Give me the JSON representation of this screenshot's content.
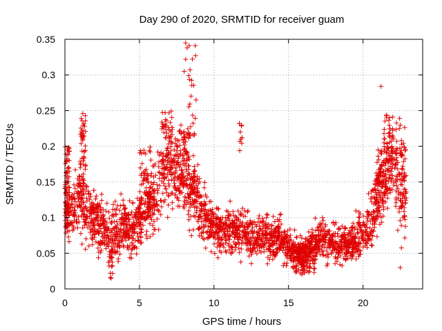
{
  "chart_data": {
    "type": "scatter",
    "title": "Day 290 of 2020, SRMTID for receiver guam",
    "xlabel": "GPS time / hours",
    "ylabel": "SRMTID / TECUs",
    "xlim": [
      0,
      24
    ],
    "ylim": [
      0,
      0.35
    ],
    "xticks": [
      0,
      5,
      10,
      15,
      20
    ],
    "yticks": [
      0,
      0.05,
      0.1,
      0.15,
      0.2,
      0.25,
      0.3,
      0.35
    ],
    "xtick_labels": [
      "0",
      "5",
      "10",
      "15",
      "20"
    ],
    "ytick_labels": [
      "0",
      "0.05",
      "0.1",
      "0.15",
      "0.2",
      "0.25",
      "0.3",
      "0.35"
    ],
    "grid": true,
    "marker": "+",
    "point_count_estimate": 2600,
    "trend": {
      "x": [
        0,
        0.5,
        1.0,
        1.5,
        2.0,
        2.5,
        3.0,
        3.5,
        4.0,
        4.5,
        5.0,
        5.5,
        6.0,
        6.5,
        7.0,
        7.5,
        8.0,
        8.5,
        9.0,
        9.5,
        10.0,
        10.5,
        11.0,
        11.5,
        12.0,
        12.5,
        13.0,
        13.5,
        14.0,
        14.5,
        15.0,
        15.5,
        16.0,
        16.5,
        17.0,
        17.5,
        18.0,
        18.5,
        19.0,
        19.5,
        20.0,
        20.5,
        21.0,
        21.5,
        22.0,
        22.5,
        22.9
      ],
      "y": [
        0.12,
        0.11,
        0.13,
        0.11,
        0.095,
        0.09,
        0.08,
        0.075,
        0.085,
        0.08,
        0.1,
        0.12,
        0.13,
        0.15,
        0.16,
        0.17,
        0.155,
        0.14,
        0.12,
        0.1,
        0.085,
        0.08,
        0.085,
        0.08,
        0.08,
        0.07,
        0.075,
        0.075,
        0.07,
        0.07,
        0.055,
        0.05,
        0.05,
        0.06,
        0.065,
        0.07,
        0.065,
        0.06,
        0.065,
        0.07,
        0.08,
        0.09,
        0.13,
        0.15,
        0.17,
        0.13,
        0.12
      ]
    },
    "spread": {
      "x": [
        0,
        1.0,
        2.0,
        3.0,
        4.0,
        5.0,
        6.0,
        7.0,
        8.0,
        9.0,
        10.0,
        11.0,
        12.0,
        13.0,
        14.0,
        15.0,
        16.0,
        17.0,
        18.0,
        19.0,
        20.0,
        21.0,
        22.0,
        22.9
      ],
      "y": [
        0.035,
        0.04,
        0.035,
        0.035,
        0.035,
        0.04,
        0.045,
        0.045,
        0.05,
        0.04,
        0.03,
        0.03,
        0.03,
        0.03,
        0.028,
        0.022,
        0.022,
        0.025,
        0.025,
        0.025,
        0.03,
        0.04,
        0.045,
        0.045
      ]
    },
    "clusters": [
      {
        "x": [
          0.0,
          0.3
        ],
        "y": [
          0.08,
          0.2
        ],
        "n": 60
      },
      {
        "x": [
          1.0,
          1.4
        ],
        "y": [
          0.15,
          0.245
        ],
        "n": 45
      },
      {
        "x": [
          2.9,
          3.2
        ],
        "y": [
          0.015,
          0.06
        ],
        "n": 20
      },
      {
        "x": [
          5.0,
          5.9
        ],
        "y": [
          0.1,
          0.2
        ],
        "n": 50
      },
      {
        "x": [
          6.5,
          7.2
        ],
        "y": [
          0.16,
          0.25
        ],
        "n": 60
      },
      {
        "x": [
          7.7,
          8.4
        ],
        "y": [
          0.15,
          0.23
        ],
        "n": 50
      },
      {
        "x": [
          8.3,
          8.8
        ],
        "y": [
          0.21,
          0.345
        ],
        "n": 22
      },
      {
        "x": [
          11.7,
          11.9
        ],
        "y": [
          0.19,
          0.232
        ],
        "n": 8
      },
      {
        "x": [
          15.3,
          16.8
        ],
        "y": [
          0.02,
          0.06
        ],
        "n": 90
      },
      {
        "x": [
          20.8,
          21.5
        ],
        "y": [
          0.13,
          0.2
        ],
        "n": 40
      },
      {
        "x": [
          21.4,
          22.3
        ],
        "y": [
          0.18,
          0.245
        ],
        "n": 50
      },
      {
        "x": [
          22.4,
          22.9
        ],
        "y": [
          0.15,
          0.24
        ],
        "n": 28
      }
    ],
    "notable_points": [
      {
        "x": 8.1,
        "y": 0.345
      },
      {
        "x": 8.2,
        "y": 0.338
      },
      {
        "x": 8.1,
        "y": 0.322
      },
      {
        "x": 8.0,
        "y": 0.305
      },
      {
        "x": 21.2,
        "y": 0.284
      },
      {
        "x": 8.8,
        "y": 0.265
      },
      {
        "x": 3.1,
        "y": 0.015
      },
      {
        "x": 22.5,
        "y": 0.03
      },
      {
        "x": 11.7,
        "y": 0.232
      },
      {
        "x": 11.8,
        "y": 0.21
      },
      {
        "x": 1.2,
        "y": 0.246
      }
    ],
    "colors": {
      "marker": "#e00000",
      "grid": "#a0a0a0",
      "axis": "#000000"
    }
  }
}
